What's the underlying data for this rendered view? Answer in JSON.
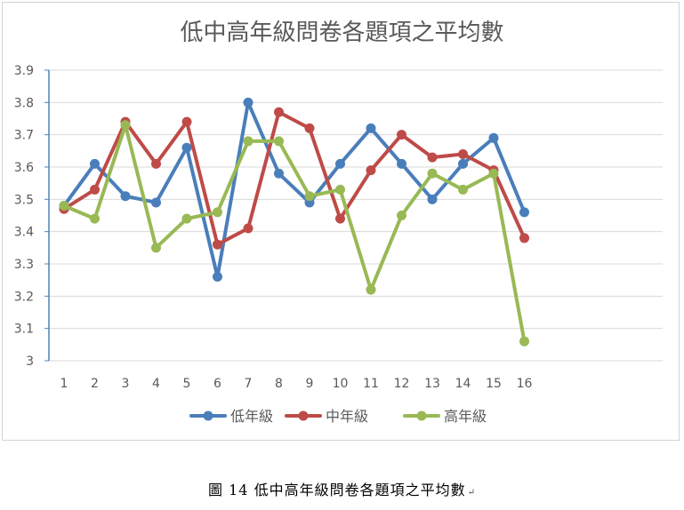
{
  "chart_data": {
    "type": "line",
    "title": "低中高年級問卷各題項之平均數",
    "categories": [
      "1",
      "2",
      "3",
      "4",
      "5",
      "6",
      "7",
      "8",
      "9",
      "10",
      "11",
      "12",
      "13",
      "14",
      "15",
      "16"
    ],
    "ylim": [
      3,
      3.9
    ],
    "yticks": [
      "3",
      "3.1",
      "3.2",
      "3.3",
      "3.4",
      "3.5",
      "3.6",
      "3.7",
      "3.8",
      "3.9"
    ],
    "grid": true,
    "legend_position": "bottom",
    "series": [
      {
        "name": "低年級",
        "color": "#4a7ebb",
        "values": [
          3.48,
          3.61,
          3.51,
          3.49,
          3.66,
          3.26,
          3.8,
          3.58,
          3.49,
          3.61,
          3.72,
          3.61,
          3.5,
          3.61,
          3.69,
          3.46
        ]
      },
      {
        "name": "中年級",
        "color": "#be4b48",
        "values": [
          3.47,
          3.53,
          3.74,
          3.61,
          3.74,
          3.36,
          3.41,
          3.77,
          3.72,
          3.44,
          3.59,
          3.7,
          3.63,
          3.64,
          3.59,
          3.38
        ]
      },
      {
        "name": "高年級",
        "color": "#98b954",
        "values": [
          3.48,
          3.44,
          3.73,
          3.35,
          3.44,
          3.46,
          3.68,
          3.68,
          3.51,
          3.53,
          3.22,
          3.45,
          3.58,
          3.53,
          3.58,
          3.06
        ]
      }
    ]
  },
  "caption": {
    "text": "圖 14  低中高年級問卷各題項之平均數",
    "mark": "↵"
  }
}
